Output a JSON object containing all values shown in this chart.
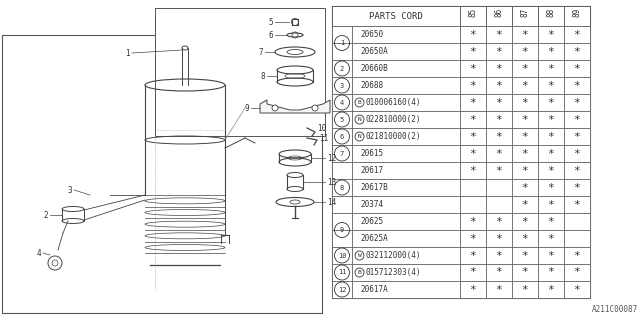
{
  "part_code_label": "PARTS CORD",
  "year_cols": [
    "85",
    "86",
    "87",
    "88",
    "89"
  ],
  "rows": [
    {
      "ref": "1",
      "prefix": "",
      "part": "20650",
      "stars": [
        1,
        1,
        1,
        1,
        1
      ],
      "ref_span": 2
    },
    {
      "ref": "",
      "prefix": "",
      "part": "20650A",
      "stars": [
        1,
        1,
        1,
        1,
        1
      ],
      "ref_span": 0
    },
    {
      "ref": "2",
      "prefix": "",
      "part": "20660B",
      "stars": [
        1,
        1,
        1,
        1,
        1
      ],
      "ref_span": 1
    },
    {
      "ref": "3",
      "prefix": "",
      "part": "20688",
      "stars": [
        1,
        1,
        1,
        1,
        1
      ],
      "ref_span": 1
    },
    {
      "ref": "4",
      "prefix": "B",
      "part": "010006160(4)",
      "stars": [
        1,
        1,
        1,
        1,
        1
      ],
      "ref_span": 1
    },
    {
      "ref": "5",
      "prefix": "N",
      "part": "022810000(2)",
      "stars": [
        1,
        1,
        1,
        1,
        1
      ],
      "ref_span": 1
    },
    {
      "ref": "6",
      "prefix": "N",
      "part": "021810000(2)",
      "stars": [
        1,
        1,
        1,
        1,
        1
      ],
      "ref_span": 1
    },
    {
      "ref": "7",
      "prefix": "",
      "part": "20615",
      "stars": [
        1,
        1,
        1,
        1,
        1
      ],
      "ref_span": 1
    },
    {
      "ref": "8",
      "prefix": "",
      "part": "20617",
      "stars": [
        1,
        1,
        1,
        1,
        1
      ],
      "ref_span": 3
    },
    {
      "ref": "",
      "prefix": "",
      "part": "20617B",
      "stars": [
        0,
        0,
        1,
        1,
        1
      ],
      "ref_span": 0
    },
    {
      "ref": "",
      "prefix": "",
      "part": "20374",
      "stars": [
        0,
        0,
        1,
        1,
        1
      ],
      "ref_span": 0
    },
    {
      "ref": "9",
      "prefix": "",
      "part": "20625",
      "stars": [
        1,
        1,
        1,
        1,
        0
      ],
      "ref_span": 2
    },
    {
      "ref": "",
      "prefix": "",
      "part": "20625A",
      "stars": [
        1,
        1,
        1,
        1,
        0
      ],
      "ref_span": 0
    },
    {
      "ref": "10",
      "prefix": "W",
      "part": "032112000(4)",
      "stars": [
        1,
        1,
        1,
        1,
        1
      ],
      "ref_span": 1
    },
    {
      "ref": "11",
      "prefix": "B",
      "part": "015712303(4)",
      "stars": [
        1,
        1,
        1,
        1,
        1
      ],
      "ref_span": 1
    },
    {
      "ref": "12",
      "prefix": "",
      "part": "20617A",
      "stars": [
        1,
        1,
        1,
        1,
        1
      ],
      "ref_span": 1
    }
  ],
  "diagram_label": "A211C00087",
  "bg_color": "#ffffff"
}
